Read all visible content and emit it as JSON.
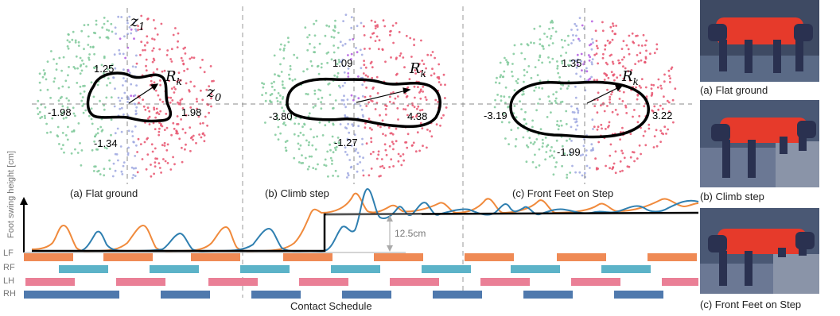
{
  "panels": [
    {
      "caption": "(a) Flat ground",
      "top": "1.25",
      "left": "-1.98",
      "right": "1.98",
      "bottom": "-1.34"
    },
    {
      "caption": "(b) Climb step",
      "top": "1.09",
      "left": "-3.80",
      "right": "4.38",
      "bottom": "-1.27"
    },
    {
      "caption": "(c) Front Feet on Step",
      "top": "1.35",
      "left": "-3.19",
      "right": "3.22",
      "bottom": "-1.99"
    }
  ],
  "axes": {
    "z1": "z",
    "z1_sub": "1",
    "z0": "z",
    "z0_sub": "0",
    "rk": "R",
    "rk_sub": "k"
  },
  "swing": {
    "ylabel": "Foot swing height [cm]",
    "step_label": "12.5cm"
  },
  "contact": {
    "legs": [
      "LF",
      "RF",
      "LH",
      "RH"
    ],
    "title": "Contact Schedule"
  },
  "photos": [
    {
      "caption": "(a) Flat ground"
    },
    {
      "caption": "(b) Climb step"
    },
    {
      "caption": "(c) Front Feet on Step"
    }
  ],
  "colors": {
    "green": "#7fc99a",
    "blue": "#9fa8e0",
    "red": "#e8546e",
    "purple": "#b45ae0",
    "orange": "#f08a3c",
    "teal": "#2f7fb0",
    "black": "#000000",
    "rf": "#5cb3c8",
    "lh": "#ea7f96",
    "rh": "#4f79ad",
    "lf": "#ef8a55"
  }
}
